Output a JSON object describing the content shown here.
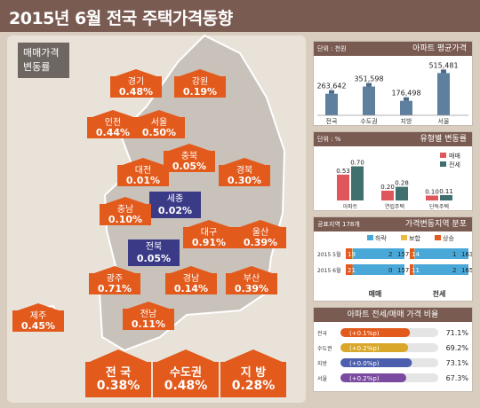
{
  "title": "2015년 6월 전국 주택가격동향",
  "legend_box": [
    "매매가격",
    "변동률"
  ],
  "regions": [
    {
      "name": "경기",
      "value": "0.48%"
    },
    {
      "name": "강원",
      "value": "0.19%"
    },
    {
      "name": "인천",
      "value": "0.44%"
    },
    {
      "name": "서울",
      "value": "0.50%"
    },
    {
      "name": "충북",
      "value": "0.05%"
    },
    {
      "name": "대전",
      "value": "0.01%"
    },
    {
      "name": "세종",
      "value": "0.02%"
    },
    {
      "name": "경북",
      "value": "0.30%"
    },
    {
      "name": "충남",
      "value": "0.10%"
    },
    {
      "name": "대구",
      "value": "0.91%"
    },
    {
      "name": "울산",
      "value": "0.39%"
    },
    {
      "name": "전북",
      "value": "0.05%"
    },
    {
      "name": "광주",
      "value": "0.71%"
    },
    {
      "name": "경남",
      "value": "0.14%"
    },
    {
      "name": "부산",
      "value": "0.39%"
    },
    {
      "name": "전남",
      "value": "0.11%"
    },
    {
      "name": "제주",
      "value": "0.45%"
    }
  ],
  "summary": [
    {
      "name": "전 국",
      "value": "0.38%"
    },
    {
      "name": "수도권",
      "value": "0.48%"
    },
    {
      "name": "지 방",
      "value": "0.28%"
    }
  ],
  "colors": {
    "up": "#e25a1c",
    "flat": "#3b3a87",
    "brown": "#7a5b52"
  },
  "chart_data": [
    {
      "type": "bar",
      "title": "아파트 평균가격",
      "unit": "단위 : 천원",
      "categories": [
        "전국",
        "수도권",
        "지방",
        "서울"
      ],
      "values": [
        263642,
        351598,
        176498,
        515481
      ],
      "labels": [
        "263,642",
        "351,598",
        "176,498",
        "515,481"
      ]
    },
    {
      "type": "bar",
      "title": "유형별 변동률",
      "unit": "단위 : %",
      "categories": [
        "아파트",
        "연립주택",
        "단독주택"
      ],
      "series": [
        {
          "name": "매매",
          "values": [
            0.53,
            0.2,
            0.1
          ]
        },
        {
          "name": "전세",
          "values": [
            0.7,
            0.28,
            0.11
          ]
        }
      ]
    },
    {
      "type": "bar",
      "title": "가격변동지역 분포",
      "note": "공표지역 178개",
      "legend": [
        "하락",
        "보합",
        "상승"
      ],
      "groups": [
        "매매",
        "전세"
      ],
      "rows": [
        {
          "year": "2015 5월",
          "sale": [
            157,
            2,
            19
          ],
          "rent": [
            163,
            1,
            14
          ]
        },
        {
          "year": "2015 6월",
          "sale": [
            157,
            0,
            21
          ],
          "rent": [
            165,
            2,
            11
          ]
        }
      ]
    },
    {
      "type": "bar",
      "title": "아파트 전세/매매 가격 비율",
      "rows": [
        {
          "name": "전국",
          "change": "(+0.1%p)",
          "value": "71.1%",
          "pct": 71.1
        },
        {
          "name": "수도권",
          "change": "(+0.2%p)",
          "value": "69.2%",
          "pct": 69.2
        },
        {
          "name": "지방",
          "change": "(+0.0%p)",
          "value": "73.1%",
          "pct": 73.1
        },
        {
          "name": "서울",
          "change": "(+0.2%p)",
          "value": "67.3%",
          "pct": 67.3
        }
      ]
    }
  ]
}
